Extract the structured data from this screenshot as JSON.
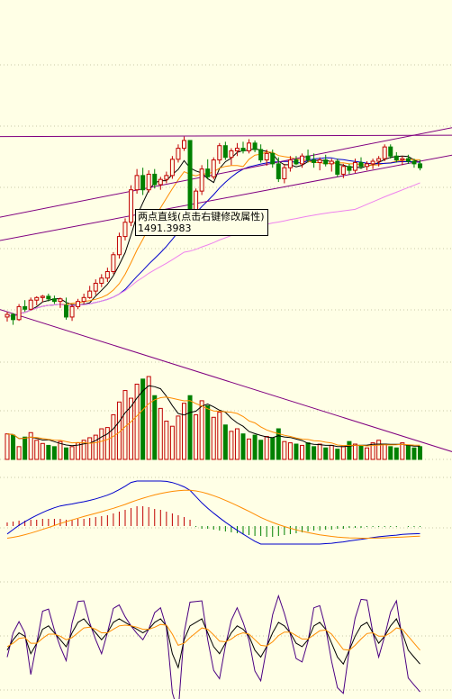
{
  "tooltip": {
    "title": "两点直线(点击右键修改属性)",
    "value": "1491.3983"
  },
  "colors": {
    "background": "#ffffe6",
    "grid": "#c9c9a8",
    "up": "#c00000",
    "down": "#008000",
    "ma_fast": "#000000",
    "ma_mid": "#ff8c00",
    "ma_slow": "#0000cc",
    "ma_long": "#ee82ee",
    "trendline": "#800080"
  },
  "chart_data": [
    {
      "type": "candlestick",
      "panel": "price",
      "candles": [
        [
          1332,
          1340,
          1325,
          1336
        ],
        [
          1336,
          1338,
          1320,
          1328
        ],
        [
          1328,
          1352,
          1326,
          1348
        ],
        [
          1348,
          1358,
          1340,
          1344
        ],
        [
          1344,
          1362,
          1342,
          1358
        ],
        [
          1358,
          1364,
          1350,
          1362
        ],
        [
          1362,
          1366,
          1355,
          1364
        ],
        [
          1364,
          1368,
          1356,
          1360
        ],
        [
          1360,
          1365,
          1352,
          1356
        ],
        [
          1356,
          1362,
          1346,
          1360
        ],
        [
          1350,
          1362,
          1328,
          1332
        ],
        [
          1332,
          1352,
          1326,
          1348
        ],
        [
          1348,
          1360,
          1344,
          1356
        ],
        [
          1356,
          1368,
          1352,
          1362
        ],
        [
          1362,
          1380,
          1360,
          1372
        ],
        [
          1372,
          1390,
          1366,
          1384
        ],
        [
          1384,
          1398,
          1378,
          1392
        ],
        [
          1392,
          1408,
          1386,
          1402
        ],
        [
          1402,
          1432,
          1398,
          1428
        ],
        [
          1428,
          1462,
          1422,
          1456
        ],
        [
          1456,
          1484,
          1450,
          1478
        ],
        [
          1478,
          1535,
          1472,
          1528
        ],
        [
          1528,
          1560,
          1522,
          1550
        ],
        [
          1550,
          1562,
          1520,
          1528
        ],
        [
          1528,
          1558,
          1524,
          1552
        ],
        [
          1552,
          1560,
          1530,
          1536
        ],
        [
          1536,
          1548,
          1528,
          1544
        ],
        [
          1544,
          1556,
          1538,
          1550
        ],
        [
          1550,
          1580,
          1545,
          1575
        ],
        [
          1575,
          1598,
          1570,
          1592
        ],
        [
          1592,
          1610,
          1588,
          1604
        ],
        [
          1604,
          1604,
          1480,
          1488
        ],
        [
          1488,
          1530,
          1484,
          1526
        ],
        [
          1526,
          1566,
          1520,
          1560
        ],
        [
          1560,
          1575,
          1544,
          1548
        ],
        [
          1548,
          1578,
          1544,
          1574
        ],
        [
          1574,
          1600,
          1568,
          1596
        ],
        [
          1596,
          1602,
          1574,
          1578
        ],
        [
          1578,
          1592,
          1566,
          1588
        ],
        [
          1588,
          1600,
          1580,
          1592
        ],
        [
          1592,
          1602,
          1584,
          1588
        ],
        [
          1588,
          1606,
          1584,
          1600
        ],
        [
          1600,
          1604,
          1586,
          1590
        ],
        [
          1590,
          1598,
          1570,
          1574
        ],
        [
          1574,
          1590,
          1565,
          1584
        ],
        [
          1584,
          1590,
          1562,
          1568
        ],
        [
          1568,
          1578,
          1540,
          1545
        ],
        [
          1545,
          1568,
          1538,
          1562
        ],
        [
          1562,
          1580,
          1556,
          1574
        ],
        [
          1574,
          1580,
          1566,
          1568
        ],
        [
          1568,
          1584,
          1562,
          1580
        ],
        [
          1580,
          1590,
          1570,
          1574
        ],
        [
          1574,
          1584,
          1562,
          1570
        ],
        [
          1570,
          1578,
          1558,
          1574
        ],
        [
          1574,
          1582,
          1564,
          1568
        ],
        [
          1568,
          1576,
          1556,
          1572
        ],
        [
          1572,
          1576,
          1548,
          1552
        ],
        [
          1552,
          1568,
          1546,
          1564
        ],
        [
          1564,
          1568,
          1552,
          1558
        ],
        [
          1558,
          1576,
          1554,
          1570
        ],
        [
          1570,
          1578,
          1560,
          1564
        ],
        [
          1564,
          1572,
          1558,
          1568
        ],
        [
          1568,
          1576,
          1560,
          1572
        ],
        [
          1572,
          1580,
          1564,
          1576
        ],
        [
          1576,
          1598,
          1572,
          1594
        ],
        [
          1594,
          1598,
          1576,
          1580
        ],
        [
          1580,
          1586,
          1570,
          1574
        ],
        [
          1574,
          1580,
          1566,
          1576
        ],
        [
          1576,
          1582,
          1568,
          1572
        ],
        [
          1572,
          1576,
          1562,
          1568
        ],
        [
          1568,
          1574,
          1558,
          1562
        ]
      ],
      "trendline_label": "两点直线(点击右键修改属性)",
      "trendline_value": 1491.3983
    },
    {
      "type": "bar",
      "panel": "volume",
      "values": [
        40,
        38,
        20,
        35,
        42,
        30,
        25,
        22,
        20,
        28,
        18,
        20,
        26,
        30,
        34,
        38,
        48,
        50,
        70,
        90,
        108,
        96,
        118,
        126,
        130,
        100,
        80,
        60,
        52,
        68,
        88,
        100,
        70,
        92,
        84,
        66,
        74,
        54,
        44,
        48,
        40,
        32,
        38,
        30,
        36,
        34,
        48,
        28,
        26,
        24,
        22,
        26,
        20,
        24,
        18,
        22,
        16,
        20,
        28,
        24,
        22,
        18,
        26,
        30,
        24,
        20,
        18,
        26,
        22,
        18,
        20
      ]
    },
    {
      "type": "bar",
      "panel": "macd",
      "values": [
        4,
        5,
        6,
        6,
        7,
        7,
        8,
        8,
        8,
        8,
        7,
        7,
        8,
        8,
        9,
        10,
        11,
        12,
        14,
        16,
        18,
        20,
        22,
        22,
        21,
        19,
        18,
        16,
        14,
        12,
        10,
        7,
        -1,
        -3,
        -3,
        -4,
        -5,
        -6,
        -7,
        -8,
        -9,
        -10,
        -11,
        -11,
        -12,
        -12,
        -11,
        -10,
        -9,
        -8,
        -7,
        -6,
        -5,
        -5,
        -4,
        -4,
        -3,
        -3,
        -2,
        -2,
        -2,
        -1,
        -1,
        -1,
        -1,
        -1,
        -1,
        0,
        -1,
        -1,
        -1
      ]
    },
    {
      "type": "line",
      "panel": "kdj",
      "k": [
        45,
        60,
        70,
        65,
        40,
        55,
        75,
        80,
        70,
        60,
        50,
        70,
        85,
        90,
        80,
        70,
        60,
        70,
        85,
        90,
        85,
        80,
        75,
        70,
        75,
        85,
        90,
        80,
        40,
        20,
        60,
        80,
        85,
        90,
        70,
        50,
        40,
        55,
        70,
        80,
        75,
        65,
        45,
        35,
        50,
        70,
        85,
        80,
        70,
        55,
        50,
        60,
        80,
        85,
        75,
        55,
        35,
        25,
        45,
        65,
        80,
        85,
        70,
        55,
        65,
        80,
        90,
        70,
        45,
        35,
        25
      ],
      "d": [
        50,
        55,
        62,
        63,
        55,
        55,
        62,
        68,
        68,
        65,
        60,
        63,
        70,
        77,
        78,
        75,
        70,
        70,
        75,
        80,
        81,
        80,
        78,
        75,
        75,
        78,
        82,
        81,
        68,
        52,
        55,
        63,
        70,
        77,
        75,
        67,
        58,
        57,
        61,
        67,
        70,
        68,
        60,
        52,
        51,
        57,
        66,
        71,
        71,
        66,
        61,
        61,
        67,
        73,
        74,
        68,
        57,
        46,
        45,
        52,
        61,
        69,
        70,
        65,
        65,
        70,
        77,
        75,
        65,
        55,
        45
      ],
      "j": [
        35,
        70,
        86,
        70,
        10,
        55,
        101,
        104,
        74,
        50,
        30,
        84,
        115,
        116,
        84,
        60,
        40,
        70,
        105,
        110,
        93,
        80,
        69,
        60,
        75,
        99,
        106,
        78,
        -16,
        -44,
        70,
        114,
        115,
        116,
        60,
        16,
        4,
        51,
        88,
        106,
        85,
        59,
        15,
        1,
        48,
        96,
        123,
        98,
        68,
        33,
        28,
        58,
        106,
        109,
        77,
        29,
        -9,
        -17,
        45,
        91,
        118,
        117,
        70,
        35,
        65,
        100,
        116,
        60,
        5,
        -5,
        -15
      ]
    }
  ]
}
